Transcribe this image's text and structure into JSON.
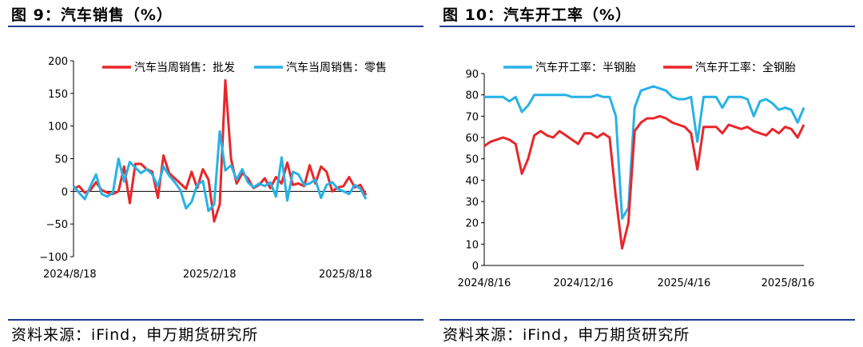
{
  "colors": {
    "red": "#e8262a",
    "blue": "#27b2e6",
    "rule": "#1f3a93"
  },
  "charts": [
    {
      "title": "图 9：汽车销售（%）",
      "source": "资料来源：iFind，申万期货研究所",
      "chart_data": {
        "type": "line",
        "ylim": [
          -100,
          200
        ],
        "yticks": [
          -100,
          -50,
          0,
          50,
          100,
          150,
          200
        ],
        "ytick_labels": [
          "−100",
          "−50",
          "0",
          "50",
          "100",
          "150",
          "200"
        ],
        "xtick_labels": [
          "2024/8/18",
          "2025/2/18",
          "2025/8/18"
        ],
        "legend_position": "top",
        "series": [
          {
            "name": "汽车当周销售：批发",
            "color": "#e8262a",
            "values": [
              4,
              8,
              -2,
              2,
              14,
              2,
              -2,
              -4,
              0,
              38,
              -18,
              42,
              42,
              34,
              30,
              -10,
              55,
              28,
              20,
              12,
              4,
              30,
              5,
              34,
              18,
              -46,
              -20,
              170,
              50,
              12,
              28,
              20,
              5,
              10,
              20,
              5,
              22,
              12,
              44,
              10,
              12,
              8,
              40,
              12,
              38,
              30,
              0,
              6,
              8,
              22,
              6,
              10,
              -6
            ]
          },
          {
            "name": "汽车当周销售：零售",
            "color": "#27b2e6",
            "values": [
              8,
              -2,
              -12,
              8,
              26,
              -4,
              -8,
              -2,
              50,
              15,
              45,
              36,
              28,
              34,
              26,
              8,
              38,
              24,
              14,
              2,
              -26,
              -16,
              10,
              16,
              -30,
              -20,
              92,
              32,
              40,
              18,
              34,
              14,
              6,
              12,
              8,
              14,
              -8,
              52,
              -14,
              30,
              26,
              10,
              12,
              18,
              -10,
              10,
              14,
              4,
              0,
              -4,
              10,
              4,
              -12
            ]
          }
        ]
      }
    },
    {
      "title": "图 10：汽车开工率（%）",
      "source": "资料来源：iFind，申万期货研究所",
      "chart_data": {
        "type": "line",
        "ylim": [
          0,
          90
        ],
        "yticks": [
          0,
          10,
          20,
          30,
          40,
          50,
          60,
          70,
          80,
          90
        ],
        "ytick_labels": [
          "0",
          "10",
          "20",
          "30",
          "40",
          "50",
          "60",
          "70",
          "80",
          "90"
        ],
        "xtick_labels": [
          "2024/8/16",
          "2024/12/16",
          "2025/4/16",
          "2025/8/16"
        ],
        "legend_position": "top",
        "series": [
          {
            "name": "汽车开工率：半钢胎",
            "color": "#27b2e6",
            "values": [
              79,
              79,
              79,
              79,
              77,
              79,
              72,
              75,
              80,
              80,
              80,
              80,
              80,
              80,
              79,
              79,
              79,
              79,
              80,
              79,
              79,
              70,
              22,
              27,
              74,
              82,
              83,
              84,
              83,
              82,
              79,
              78,
              78,
              79,
              58,
              79,
              79,
              79,
              74,
              79,
              79,
              79,
              78,
              70,
              77,
              78,
              76,
              73,
              74,
              73,
              67,
              74
            ]
          },
          {
            "name": "汽车开工率：全钢胎",
            "color": "#e8262a",
            "values": [
              56,
              58,
              59,
              60,
              59,
              57,
              43,
              50,
              61,
              63,
              61,
              60,
              63,
              61,
              59,
              57,
              62,
              62,
              60,
              62,
              60,
              32,
              8,
              20,
              63,
              67,
              69,
              69,
              70,
              69,
              67,
              66,
              65,
              62,
              45,
              65,
              65,
              65,
              62,
              66,
              65,
              64,
              65,
              63,
              62,
              61,
              64,
              62,
              65,
              64,
              60,
              66
            ]
          }
        ]
      }
    }
  ]
}
